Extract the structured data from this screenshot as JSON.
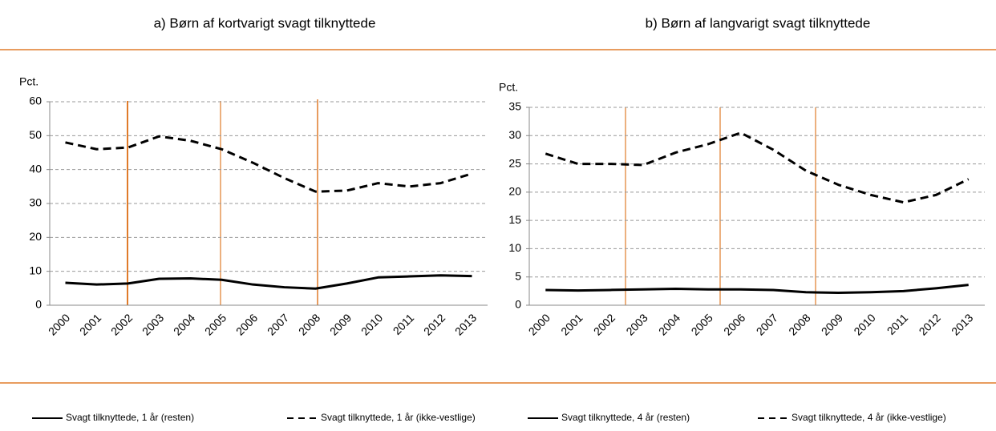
{
  "chart_data": [
    {
      "type": "line",
      "title": "a) Børn af kortvarigt svagt tilknyttede",
      "y_label": "Pct.",
      "categories": [
        "2000",
        "2001",
        "2002",
        "2003",
        "2004",
        "2005",
        "2006",
        "2007",
        "2008",
        "2009",
        "2010",
        "2011",
        "2012",
        "2013"
      ],
      "series": [
        {
          "name": "Svagt tilknyttede, 1 år (resten)",
          "color": "#000000",
          "linestyle": "solid",
          "values": [
            6.6,
            6.1,
            6.4,
            7.8,
            7.9,
            7.5,
            6.1,
            5.3,
            4.9,
            6.4,
            8.2,
            8.5,
            8.8,
            8.6
          ]
        },
        {
          "name": "Svagt tilknyttede, 1 år (ikke-vestlige)",
          "color": "#000000",
          "linestyle": "dashed",
          "values": [
            48,
            46,
            46.5,
            49.8,
            48.5,
            46,
            42,
            37.5,
            33.5,
            33.8,
            36,
            35,
            36,
            38.8
          ]
        }
      ],
      "ylim": [
        0,
        60
      ],
      "yticks": [
        0,
        10,
        20,
        30,
        40,
        50,
        60
      ],
      "grid": true
    },
    {
      "type": "line",
      "title": "b) Børn af langvarigt svagt tilknyttede",
      "y_label": "Pct.",
      "categories": [
        "2000",
        "2001",
        "2002",
        "2003",
        "2004",
        "2005",
        "2006",
        "2007",
        "2008",
        "2009",
        "2010",
        "2011",
        "2012",
        "2013"
      ],
      "series": [
        {
          "name": "Svagt tilknyttede, 4 år (resten)",
          "color": "#000000",
          "linestyle": "solid",
          "values": [
            2.7,
            2.6,
            2.7,
            2.8,
            2.9,
            2.8,
            2.8,
            2.7,
            2.3,
            2.2,
            2.3,
            2.5,
            3.0,
            3.6
          ]
        },
        {
          "name": "Svagt tilknyttede, 4 år (ikke-vestlige)",
          "color": "#000000",
          "linestyle": "dashed",
          "values": [
            26.8,
            25,
            25,
            24.8,
            27,
            28.5,
            30.5,
            27.5,
            23.8,
            21.3,
            19.5,
            18.2,
            19.5,
            22.3
          ]
        }
      ],
      "ylim": [
        0,
        35
      ],
      "yticks": [
        0,
        5,
        10,
        15,
        20,
        25,
        30,
        35
      ],
      "grid": true
    }
  ]
}
